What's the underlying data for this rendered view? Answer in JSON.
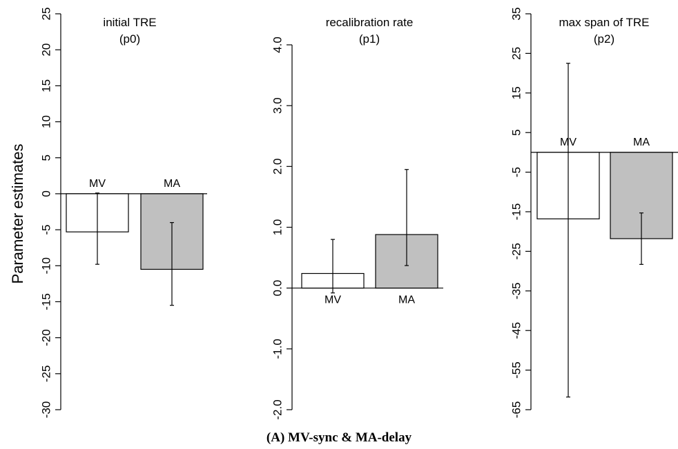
{
  "figure": {
    "ylabel": "Parameter estimates",
    "caption": "(A) MV-sync & MA-delay"
  },
  "chart_data": [
    {
      "type": "bar",
      "title": "initial TRE",
      "subtitle": "(p0)",
      "ylabel": "Parameter estimates",
      "ylim": [
        -30,
        25
      ],
      "yticks": [
        25,
        20,
        15,
        10,
        5,
        0,
        -5,
        -10,
        -15,
        -20,
        -25,
        -30
      ],
      "ytick_labels": [
        "25",
        "20",
        "15",
        "10",
        "5",
        "0",
        "-5",
        "-10",
        "-15",
        "-20",
        "-25",
        "-30"
      ],
      "categories": [
        "MV",
        "MA"
      ],
      "values": [
        -5.3,
        -10.5
      ],
      "error_low": [
        -9.8,
        -15.5
      ],
      "error_high": [
        0.1,
        -4.0
      ],
      "colors": [
        "#ffffff",
        "#c0c0c0"
      ],
      "grid": false
    },
    {
      "type": "bar",
      "title": "recalibration rate",
      "subtitle": "(p1)",
      "ylabel": "",
      "ylim": [
        -2.0,
        4.5
      ],
      "yticks": [
        4.0,
        3.0,
        2.0,
        1.0,
        0.0,
        -1.0,
        -2.0
      ],
      "ytick_labels": [
        "4.0",
        "3.0",
        "2.0",
        "1.0",
        "0.0",
        "-1.0",
        "-2.0"
      ],
      "categories": [
        "MV",
        "MA"
      ],
      "values": [
        0.24,
        0.88
      ],
      "error_low": [
        -0.08,
        0.37
      ],
      "error_high": [
        0.8,
        1.95
      ],
      "colors": [
        "#ffffff",
        "#c0c0c0"
      ],
      "grid": false
    },
    {
      "type": "bar",
      "title": "max span of TRE",
      "subtitle": "(p2)",
      "ylabel": "",
      "ylim": [
        -65,
        35
      ],
      "yticks": [
        35,
        25,
        15,
        5,
        -5,
        -15,
        -25,
        -35,
        -45,
        -55,
        -65
      ],
      "ytick_labels": [
        "35",
        "25",
        "15",
        "5",
        "-5",
        "-15",
        "-25",
        "-35",
        "-45",
        "-55",
        "-65"
      ],
      "categories": [
        "MV",
        "MA"
      ],
      "values": [
        -16.8,
        -21.8
      ],
      "error_low": [
        -61.8,
        -28.3
      ],
      "error_high": [
        22.5,
        -15.3
      ],
      "colors": [
        "#ffffff",
        "#c0c0c0"
      ],
      "grid": false
    }
  ]
}
